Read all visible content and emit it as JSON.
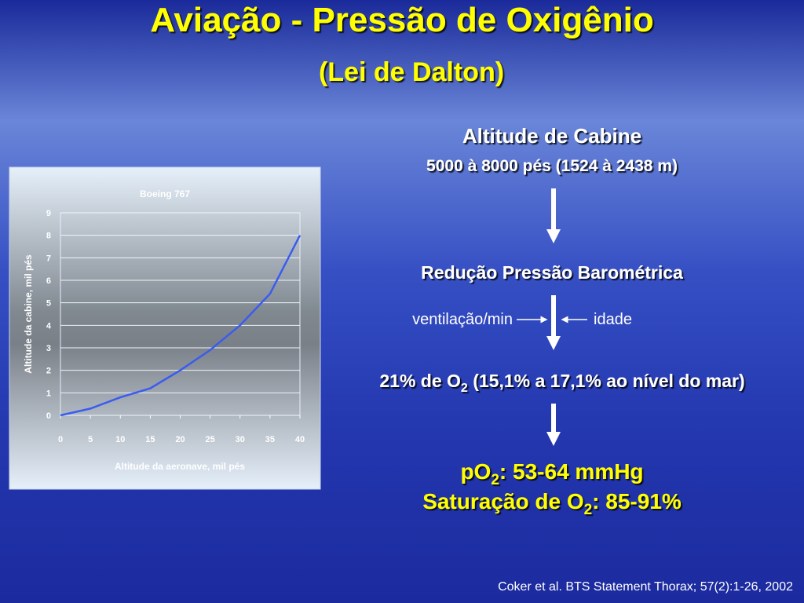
{
  "slide": {
    "title": "Aviação - Pressão de Oxigênio",
    "subtitle": "(Lei de Dalton)",
    "cabin_heading": "Altitude de Cabine",
    "cabin_range": "5000 à 8000 pés (1524 à 2438 m)",
    "reduction": "Redução Pressão Barométrica",
    "left_factor": "ventilação/min",
    "right_factor": "idade",
    "o2_line": [
      "21% de O",
      "2",
      " (15,1% a 17,1% ao nível do mar)"
    ],
    "po2_line": [
      "pO",
      "2",
      ": 53-64 mmHg"
    ],
    "sat_line": [
      "Saturação de O",
      "2",
      ": 85-91%"
    ],
    "citation": "Coker et al. BTS Statement Thorax; 57(2):1-26, 2002"
  },
  "chart_data": {
    "type": "line",
    "title": "Boeing 767",
    "x_label": "Altitude da aeronave, mil pés",
    "y_label": "Altitude da cabine, mil pés",
    "x": [
      0,
      5,
      10,
      15,
      20,
      25,
      30,
      35,
      40
    ],
    "values": [
      0,
      0.3,
      0.8,
      1.2,
      2,
      2.9,
      4,
      5.4,
      8
    ],
    "color": "#3a5cf0",
    "xlim": [
      0,
      40
    ],
    "xticks": [
      0,
      5,
      10,
      15,
      20,
      25,
      30,
      35,
      40
    ],
    "ylim": [
      0,
      9
    ],
    "yticks": [
      0,
      1,
      2,
      3,
      4,
      5,
      6,
      7,
      8,
      9
    ],
    "grid": true
  }
}
